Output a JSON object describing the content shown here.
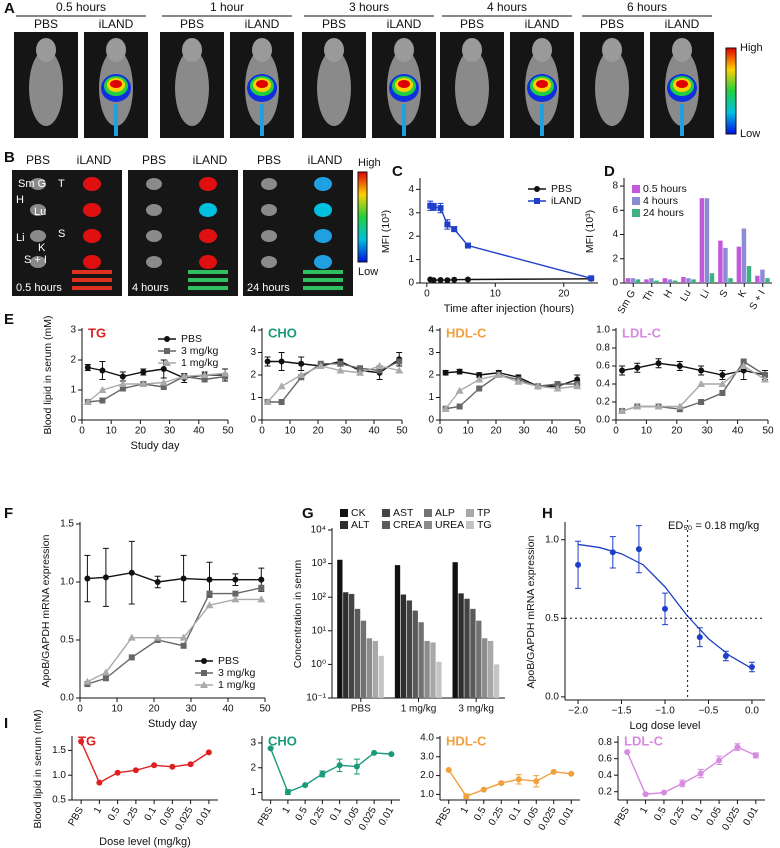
{
  "panel_a": {
    "label": "A",
    "groups": [
      {
        "time": "0.5 hours",
        "conditions": [
          "PBS",
          "iLAND"
        ]
      },
      {
        "time": "1 hour",
        "conditions": [
          "PBS",
          "iLAND"
        ]
      },
      {
        "time": "3 hours",
        "conditions": [
          "PBS",
          "iLAND"
        ]
      },
      {
        "time": "4 hours",
        "conditions": [
          "PBS",
          "iLAND"
        ]
      },
      {
        "time": "6 hours",
        "conditions": [
          "PBS",
          "iLAND"
        ]
      }
    ],
    "scale": {
      "high": "High",
      "low": "Low"
    }
  },
  "panel_b": {
    "label": "B",
    "headers": [
      [
        "PBS",
        "iLAND"
      ],
      [
        "PBS",
        "iLAND"
      ],
      [
        "PBS",
        "iLAND"
      ]
    ],
    "times": [
      "0.5 hours",
      "4 hours",
      "24 hours"
    ],
    "organs": [
      "Sm G",
      "T",
      "H",
      "Lu",
      "Li",
      "S",
      "K",
      "S + I"
    ],
    "scale": {
      "high": "High",
      "low": "Low"
    }
  },
  "chart_data": [
    {
      "type": "line",
      "panel": "C",
      "y_label": "MFI (10³)",
      "x_label": "Time after injection (hours)",
      "x": [
        0.5,
        1,
        2,
        3,
        4,
        6,
        24
      ],
      "xlim": [
        -1,
        25
      ],
      "xticks": [
        0,
        10,
        20
      ],
      "ylim": [
        0,
        4.4
      ],
      "yticks": [
        0,
        1,
        2,
        3,
        4
      ],
      "legend": "upper right",
      "series": [
        {
          "name": "PBS",
          "color": "#111111",
          "marker": "circle",
          "values": [
            0.15,
            0.12,
            0.13,
            0.12,
            0.14,
            0.15,
            0.18
          ]
        },
        {
          "name": "iLAND",
          "color": "#1f3fc8",
          "marker": "square",
          "values": [
            3.3,
            3.25,
            3.2,
            2.5,
            2.3,
            1.6,
            0.2
          ],
          "errors": [
            0.2,
            0.15,
            0.2,
            0.2,
            0.1,
            0.05,
            0.05
          ]
        }
      ]
    },
    {
      "type": "bar",
      "panel": "D",
      "y_label": "MFI (10³)",
      "categories": [
        "Sm G",
        "Th",
        "H",
        "Lu",
        "Li",
        "S",
        "K",
        "S + I"
      ],
      "ylim": [
        0,
        8.5
      ],
      "yticks": [
        0,
        2,
        4,
        6,
        8
      ],
      "legend": "upper left",
      "series": [
        {
          "name": "0.5 hours",
          "color": "#c458dc",
          "values": [
            0.4,
            0.3,
            0.4,
            0.5,
            7.0,
            3.5,
            3.0,
            0.6
          ]
        },
        {
          "name": "4 hours",
          "color": "#8c8cd4",
          "values": [
            0.4,
            0.4,
            0.3,
            0.4,
            7.0,
            2.9,
            4.5,
            1.1
          ]
        },
        {
          "name": "24 hours",
          "color": "#3fb07f",
          "values": [
            0.3,
            0.2,
            0.2,
            0.3,
            0.8,
            0.4,
            1.4,
            0.4
          ]
        }
      ]
    },
    {
      "type": "line",
      "panel": "E",
      "title": "TG",
      "title_color": "#e02020",
      "y_label": "Blood lipid in serum (mM)",
      "x_label": "Study day",
      "x": [
        2,
        7,
        14,
        21,
        28,
        35,
        42,
        49
      ],
      "xlim": [
        0,
        50
      ],
      "xticks": [
        0,
        10,
        20,
        30,
        40,
        50
      ],
      "ylim": [
        0,
        3
      ],
      "yticks": [
        0,
        1,
        2,
        3
      ],
      "legend": "upper right",
      "series": [
        {
          "name": "PBS",
          "color": "#111111",
          "marker": "circle",
          "values": [
            1.75,
            1.65,
            1.45,
            1.6,
            1.7,
            1.4,
            1.5,
            1.5
          ],
          "errors": [
            0.1,
            0.3,
            0.15,
            0.1,
            0.3,
            0.15,
            0.1,
            0.2
          ]
        },
        {
          "name": "3 mg/kg",
          "color": "#666666",
          "marker": "square",
          "values": [
            0.6,
            0.65,
            1.05,
            1.2,
            1.1,
            1.45,
            1.35,
            1.45
          ]
        },
        {
          "name": "1 mg/kg",
          "color": "#aaaaaa",
          "marker": "triangle",
          "values": [
            0.6,
            1.0,
            1.2,
            1.2,
            1.25,
            1.45,
            1.5,
            1.55
          ]
        }
      ]
    },
    {
      "type": "line",
      "title": "CHO",
      "title_color": "#1a9a7a",
      "x": [
        2,
        7,
        14,
        21,
        28,
        35,
        42,
        49
      ],
      "xlim": [
        0,
        50
      ],
      "xticks": [
        0,
        10,
        20,
        30,
        40,
        50
      ],
      "ylim": [
        0,
        4
      ],
      "yticks": [
        0,
        1,
        2,
        3,
        4
      ],
      "series": [
        {
          "color": "#111111",
          "marker": "circle",
          "values": [
            2.6,
            2.6,
            2.5,
            2.4,
            2.6,
            2.2,
            2.1,
            2.7
          ],
          "errors": [
            0.2,
            0.4,
            0.3,
            0.1,
            0.1,
            0.2,
            0.3,
            0.3
          ]
        },
        {
          "color": "#666666",
          "marker": "square",
          "values": [
            0.8,
            0.8,
            1.9,
            2.5,
            2.5,
            2.3,
            2.2,
            2.6
          ]
        },
        {
          "color": "#aaaaaa",
          "marker": "triangle",
          "values": [
            0.8,
            1.5,
            2.0,
            2.4,
            2.2,
            2.1,
            2.4,
            2.2
          ]
        }
      ]
    },
    {
      "type": "line",
      "title": "HDL-C",
      "title_color": "#f0a040",
      "x": [
        2,
        7,
        14,
        21,
        28,
        35,
        42,
        49
      ],
      "xlim": [
        0,
        50
      ],
      "xticks": [
        0,
        10,
        20,
        30,
        40,
        50
      ],
      "ylim": [
        0,
        4
      ],
      "yticks": [
        0,
        1,
        2,
        3,
        4
      ],
      "series": [
        {
          "color": "#111111",
          "marker": "circle",
          "values": [
            2.1,
            2.15,
            2.0,
            2.1,
            1.9,
            1.5,
            1.5,
            1.8
          ],
          "errors": [
            0.1,
            0.1,
            0.1,
            0.1,
            0.1,
            0.1,
            0.1,
            0.2
          ]
        },
        {
          "color": "#666666",
          "marker": "square",
          "values": [
            0.5,
            0.6,
            1.4,
            2.0,
            1.8,
            1.5,
            1.6,
            1.6
          ]
        },
        {
          "color": "#aaaaaa",
          "marker": "triangle",
          "values": [
            0.5,
            1.3,
            1.8,
            2.0,
            1.7,
            1.5,
            1.4,
            1.5
          ]
        }
      ]
    },
    {
      "type": "line",
      "title": "LDL-C",
      "title_color": "#d68be0",
      "x": [
        2,
        7,
        14,
        21,
        28,
        35,
        42,
        49
      ],
      "xlim": [
        0,
        50
      ],
      "xticks": [
        0,
        10,
        20,
        30,
        40,
        50
      ],
      "ylim": [
        0,
        1
      ],
      "yticks": [
        {
          "value": 0,
          "label": "0.0"
        },
        0.2,
        0.4,
        0.6,
        0.8,
        {
          "value": 1,
          "label": "1.0"
        }
      ],
      "series": [
        {
          "color": "#111111",
          "marker": "circle",
          "values": [
            0.55,
            0.58,
            0.63,
            0.6,
            0.55,
            0.5,
            0.55,
            0.5
          ],
          "errors": [
            0.05,
            0.05,
            0.05,
            0.05,
            0.05,
            0.05,
            0.1,
            0.05
          ]
        },
        {
          "color": "#666666",
          "marker": "square",
          "values": [
            0.1,
            0.15,
            0.15,
            0.12,
            0.2,
            0.3,
            0.65,
            0.5
          ]
        },
        {
          "color": "#aaaaaa",
          "marker": "triangle",
          "values": [
            0.1,
            0.15,
            0.15,
            0.15,
            0.4,
            0.4,
            0.6,
            0.45
          ]
        }
      ]
    },
    {
      "type": "line",
      "panel": "F",
      "y_label": "ApoB/GAPDH mRNA expression",
      "x_label": "Study day",
      "x": [
        2,
        7,
        14,
        21,
        28,
        35,
        42,
        49
      ],
      "xlim": [
        0,
        50
      ],
      "xticks": [
        0,
        10,
        20,
        30,
        40,
        50
      ],
      "ylim": [
        0,
        1.5
      ],
      "yticks": [
        {
          "value": 0,
          "label": "0.0"
        },
        0.5,
        {
          "value": 1,
          "label": "1.0"
        },
        1.5
      ],
      "legend": "lower right",
      "series": [
        {
          "name": "PBS",
          "color": "#111111",
          "marker": "circle",
          "values": [
            1.03,
            1.04,
            1.08,
            1.0,
            1.03,
            1.02,
            1.02,
            1.02
          ],
          "errors": [
            0.2,
            0.25,
            0.27,
            0.05,
            0.2,
            0.15,
            0.05,
            0.1
          ]
        },
        {
          "name": "3 mg/kg",
          "color": "#666666",
          "marker": "square",
          "values": [
            0.12,
            0.17,
            0.35,
            0.5,
            0.45,
            0.9,
            0.9,
            0.95
          ]
        },
        {
          "name": "1 mg/kg",
          "color": "#aaaaaa",
          "marker": "triangle",
          "values": [
            0.14,
            0.22,
            0.52,
            0.52,
            0.52,
            0.8,
            0.85,
            0.85
          ]
        }
      ]
    },
    {
      "type": "bar",
      "panel": "G",
      "y_label": "Concentration in serum",
      "log_scale": true,
      "categories": [
        "PBS",
        "1 mg/kg",
        "3 mg/kg"
      ],
      "ylim": [
        0.1,
        10000
      ],
      "yticks": [
        {
          "value": 0.1,
          "label": "10⁻¹"
        },
        {
          "value": 1,
          "label": "10⁰"
        },
        {
          "value": 10,
          "label": "10¹"
        },
        {
          "value": 100,
          "label": "10²"
        },
        {
          "value": 1000,
          "label": "10³"
        },
        {
          "value": 10000,
          "label": "10⁴"
        }
      ],
      "legend": "upper left",
      "legend_columns": 4,
      "series": [
        {
          "name": "CK",
          "color": "#111111",
          "values": [
            1300,
            900,
            1100
          ]
        },
        {
          "name": "ALT",
          "color": "#2e2e2e",
          "values": [
            140,
            120,
            130
          ]
        },
        {
          "name": "AST",
          "color": "#444444",
          "values": [
            125,
            80,
            90
          ]
        },
        {
          "name": "CREA",
          "color": "#5a5a5a",
          "values": [
            45,
            40,
            45
          ]
        },
        {
          "name": "ALP",
          "color": "#727272",
          "values": [
            20,
            18,
            20
          ]
        },
        {
          "name": "UREA",
          "color": "#8c8c8c",
          "values": [
            6,
            5,
            6
          ]
        },
        {
          "name": "TP",
          "color": "#a8a8a8",
          "values": [
            5,
            4.5,
            5
          ]
        },
        {
          "name": "TG",
          "color": "#c4c4c4",
          "values": [
            1.8,
            1.2,
            1.0
          ]
        }
      ]
    },
    {
      "type": "scatter",
      "panel": "H",
      "y_label": "ApoB/GAPDH mRNA expression",
      "x_label": "Log dose level",
      "annotation": "ED₅₀ = 0.18 mg/kg",
      "vline": -0.74,
      "hline": 0.5,
      "xlim": [
        -2.15,
        0.15
      ],
      "xticks": [
        {
          "value": -2,
          "label": "−2.0"
        },
        {
          "value": -1.5,
          "label": "−1.5"
        },
        {
          "value": -1,
          "label": "−1.0"
        },
        {
          "value": -0.5,
          "label": "−0.5"
        },
        {
          "value": 0,
          "label": "0.0"
        }
      ],
      "ylim": [
        -0.02,
        1.1
      ],
      "yticks": [
        {
          "value": 0,
          "label": "0.0"
        },
        0.5,
        {
          "value": 1,
          "label": "1.0"
        }
      ],
      "fit_x": [
        -2,
        -1.75,
        -1.5,
        -1.25,
        -1,
        -0.75,
        -0.5,
        -0.25,
        0
      ],
      "fit_y": [
        0.97,
        0.95,
        0.91,
        0.84,
        0.7,
        0.52,
        0.37,
        0.26,
        0.18
      ],
      "x": [
        -2,
        -1.6,
        -1.3,
        -1,
        -0.6,
        -0.3,
        0
      ],
      "series": [
        {
          "color": "#1f3fc8",
          "values": [
            0.84,
            0.92,
            0.94,
            0.56,
            0.38,
            0.26,
            0.19
          ],
          "errors": [
            0.15,
            0.1,
            0.15,
            0.1,
            0.06,
            0.03,
            0.03
          ]
        }
      ]
    },
    {
      "type": "line",
      "panel": "I",
      "title": "TG",
      "title_color": "#e02020",
      "y_label": "Blood lipid in serum (mM)",
      "x_label": "Dose level (mg/kg)",
      "categories": [
        "PBS",
        "1",
        "0.5",
        "0.25",
        "0.1",
        "0.05",
        "0.025",
        "0.01"
      ],
      "ylim": [
        0.5,
        1.75
      ],
      "yticks": [
        0.5,
        {
          "value": 1,
          "label": "1.0"
        },
        1.5
      ],
      "series": [
        {
          "color": "#e02020",
          "marker": "circle",
          "values": [
            1.68,
            0.85,
            1.05,
            1.1,
            1.2,
            1.17,
            1.22,
            1.46
          ]
        }
      ]
    },
    {
      "type": "line",
      "title": "CHO",
      "title_color": "#1a9a7a",
      "categories": [
        "PBS",
        "1",
        "0.5",
        "0.25",
        "0.1",
        "0.05",
        "0.025",
        "0.01"
      ],
      "ylim": [
        0.7,
        3.2
      ],
      "yticks": [
        1,
        2,
        3
      ],
      "series": [
        {
          "color": "#1a9a7a",
          "marker": "circle",
          "values": [
            2.78,
            1.02,
            1.3,
            1.75,
            2.1,
            2.05,
            2.6,
            2.55
          ],
          "errors": [
            0,
            0.1,
            0,
            0.12,
            0.25,
            0.3,
            0,
            0
          ]
        }
      ]
    },
    {
      "type": "line",
      "title": "HDL-C",
      "title_color": "#f0a040",
      "categories": [
        "PBS",
        "1",
        "0.5",
        "0.25",
        "0.1",
        "0.05",
        "0.025",
        "0.01"
      ],
      "ylim": [
        0.7,
        4.0
      ],
      "yticks": [
        {
          "value": 1,
          "label": "1.0"
        },
        {
          "value": 2,
          "label": "2.0"
        },
        {
          "value": 3,
          "label": "3.0"
        },
        {
          "value": 4,
          "label": "4.0"
        }
      ],
      "series": [
        {
          "color": "#f0a040",
          "marker": "circle",
          "values": [
            2.3,
            0.9,
            1.25,
            1.6,
            1.8,
            1.7,
            2.2,
            2.1
          ],
          "errors": [
            0,
            0.12,
            0,
            0.08,
            0.25,
            0.3,
            0,
            0
          ]
        }
      ]
    },
    {
      "type": "line",
      "title": "LDL-C",
      "title_color": "#d68be0",
      "categories": [
        "PBS",
        "1",
        "0.5",
        "0.25",
        "0.1",
        "0.05",
        "0.025",
        "0.01"
      ],
      "ylim": [
        0.1,
        0.85
      ],
      "yticks": [
        0.2,
        0.4,
        0.6,
        0.8
      ],
      "series": [
        {
          "color": "#d68be0",
          "marker": "circle",
          "values": [
            0.68,
            0.17,
            0.19,
            0.3,
            0.42,
            0.58,
            0.74,
            0.64
          ],
          "errors": [
            0,
            0,
            0,
            0.04,
            0.05,
            0.05,
            0.04,
            0.03
          ]
        }
      ]
    }
  ]
}
